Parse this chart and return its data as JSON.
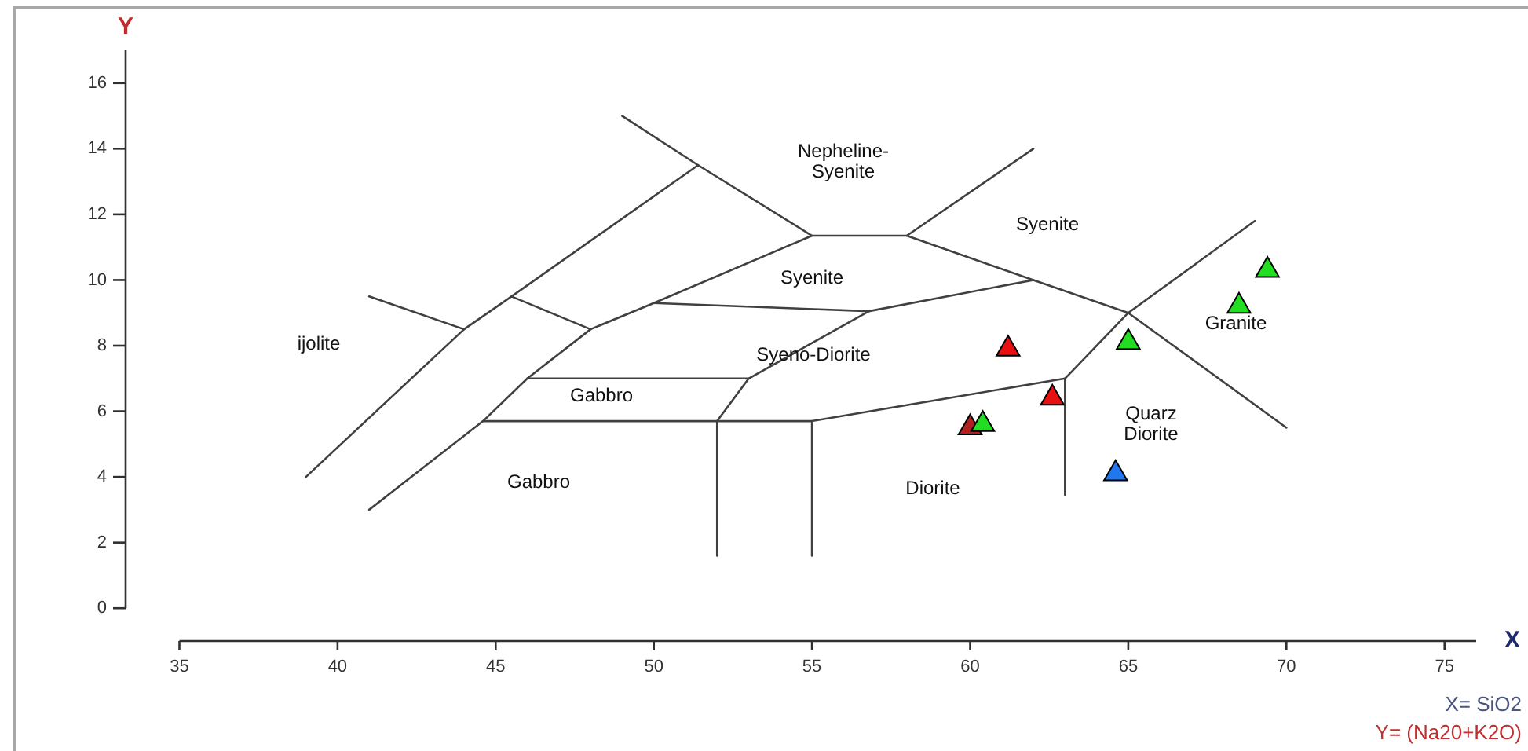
{
  "chart_data": {
    "type": "scatter",
    "xlabel": "X",
    "ylabel": "Y",
    "xlim": [
      33.3,
      76
    ],
    "ylim": [
      -1,
      17
    ],
    "xticks": [
      35,
      40,
      45,
      50,
      55,
      60,
      65,
      70,
      75
    ],
    "yticks": [
      0,
      2,
      4,
      6,
      8,
      10,
      12,
      14,
      16
    ],
    "marker": "triangle",
    "series": [
      {
        "type": "line",
        "color": "#404040",
        "marker": "none",
        "x": [
          49,
          51.4,
          55,
          58,
          62,
          65,
          70
        ],
        "values": [
          15,
          13.5,
          11.35,
          11.35,
          10,
          9,
          5.5
        ]
      },
      {
        "type": "line",
        "color": "#404040",
        "marker": "none",
        "x": [
          39,
          44,
          45.5,
          51.4
        ],
        "values": [
          4,
          8.5,
          9.5,
          13.5
        ]
      },
      {
        "type": "line",
        "color": "#404040",
        "marker": "none",
        "x": [
          41,
          44
        ],
        "values": [
          9.5,
          8.5
        ]
      },
      {
        "type": "line",
        "color": "#404040",
        "marker": "none",
        "x": [
          58,
          62
        ],
        "values": [
          11.35,
          14
        ]
      },
      {
        "type": "line",
        "color": "#404040",
        "marker": "none",
        "x": [
          63,
          63,
          65,
          69
        ],
        "values": [
          3.45,
          7,
          9,
          11.8
        ]
      },
      {
        "type": "line",
        "color": "#404040",
        "marker": "none",
        "x": [
          63,
          55,
          52,
          44.6
        ],
        "values": [
          7,
          5.7,
          5.7,
          5.7
        ]
      },
      {
        "type": "line",
        "color": "#404040",
        "marker": "none",
        "x": [
          55,
          55
        ],
        "values": [
          5.7,
          1.6
        ]
      },
      {
        "type": "line",
        "color": "#404040",
        "marker": "none",
        "x": [
          52,
          52,
          53,
          56.8,
          62
        ],
        "values": [
          1.6,
          5.7,
          7,
          9.05,
          10
        ]
      },
      {
        "type": "line",
        "color": "#404040",
        "marker": "none",
        "x": [
          46,
          53
        ],
        "values": [
          7,
          7
        ]
      },
      {
        "type": "line",
        "color": "#404040",
        "marker": "none",
        "x": [
          41,
          44.6,
          46,
          48,
          50,
          55
        ],
        "values": [
          3,
          5.7,
          7,
          8.5,
          9.3,
          11.35
        ]
      },
      {
        "type": "line",
        "color": "#404040",
        "marker": "none",
        "x": [
          45.5,
          48
        ],
        "values": [
          9.5,
          8.5
        ]
      },
      {
        "type": "line",
        "color": "#404040",
        "marker": "none",
        "x": [
          50,
          56.8
        ],
        "values": [
          9.3,
          9.05
        ]
      },
      {
        "color": "#b02020",
        "x": [
          60
        ],
        "values": [
          5.5
        ]
      },
      {
        "color": "#e81010",
        "x": [
          61.2,
          62.6
        ],
        "values": [
          7.9,
          6.4
        ]
      },
      {
        "color": "#1f78f0",
        "x": [
          64.6
        ],
        "values": [
          4.1
        ]
      },
      {
        "color": "#22dd22",
        "x": [
          69.4,
          68.5,
          65,
          60.4
        ],
        "values": [
          10.3,
          9.2,
          8.1,
          5.6
        ]
      }
    ],
    "annotations": [
      "Nepheline-\nSyenite",
      "Syenite",
      "Syenite",
      "Syeno-Diorite",
      "Gabbro",
      "Gabbro",
      "ijolite",
      "Diorite",
      "Quarz\nDiorite",
      "Granite",
      "X= SiO2",
      "Y= (Na20+K2O)"
    ]
  }
}
